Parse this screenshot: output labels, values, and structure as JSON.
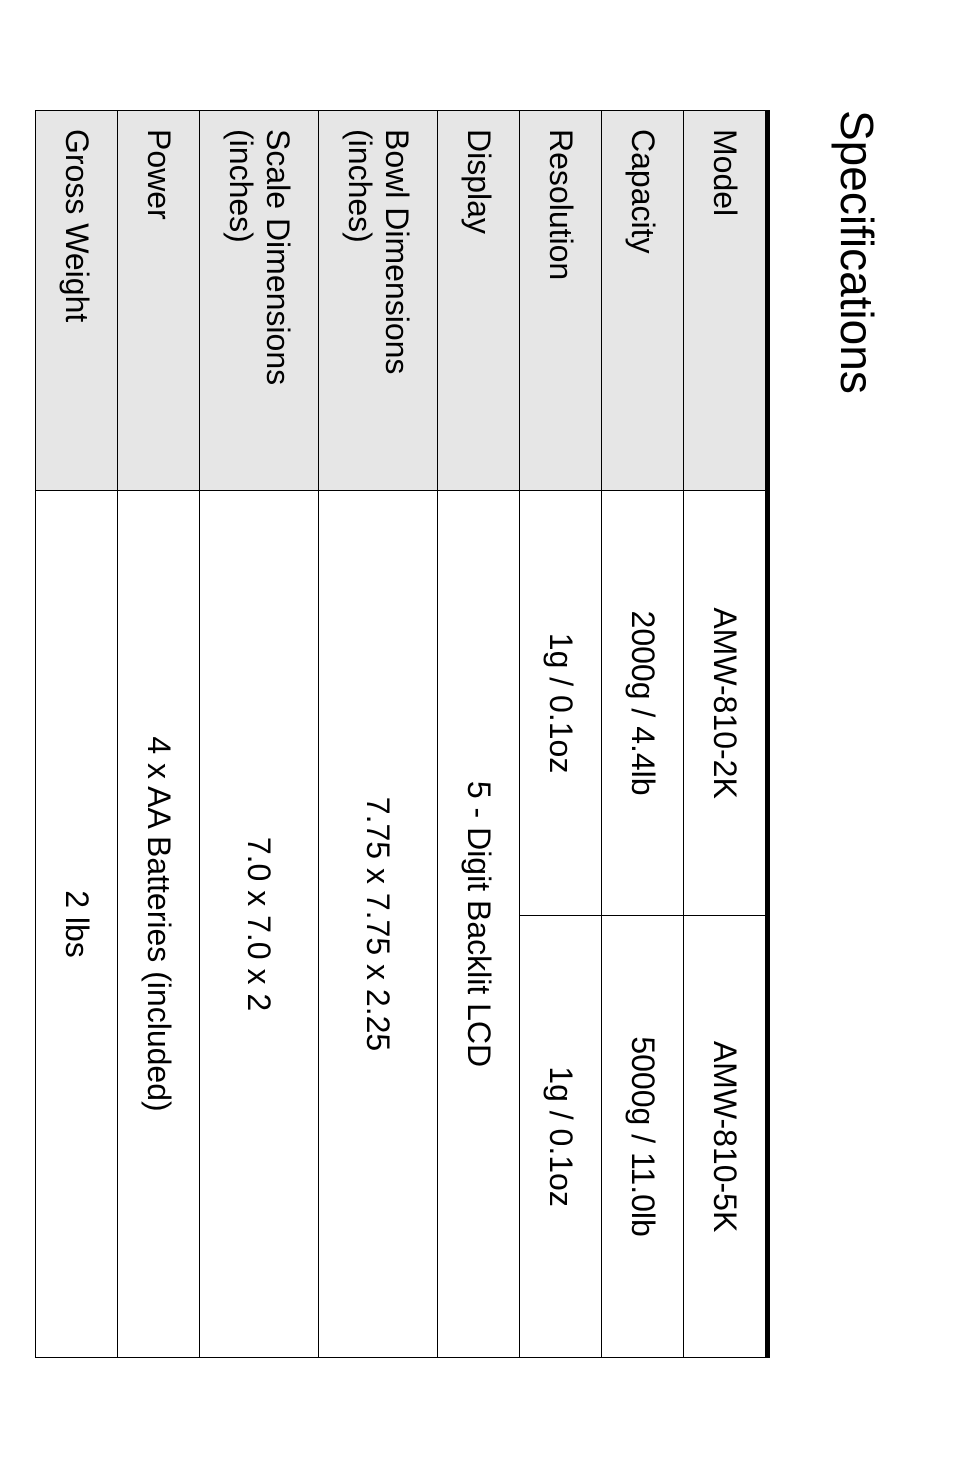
{
  "title": "Specifications",
  "table": {
    "header_bg": "#e6e6e6",
    "border_color": "#000000",
    "top_border_width": 5,
    "cell_border_width": 1.5,
    "font_size": 32,
    "rows": [
      {
        "label": "Model",
        "col1": "AMW-810-2K",
        "col2": "AMW-810-5K",
        "span": false
      },
      {
        "label": "Capacity",
        "col1": "2000g / 4.4lb",
        "col2": "5000g / 11.0lb",
        "span": false
      },
      {
        "label": "Resolution",
        "col1": "1g / 0.1oz",
        "col2": "1g / 0.1oz",
        "span": false
      },
      {
        "label": "Display",
        "col1": "5 - Digit Backlit LCD",
        "col2": "",
        "span": true
      },
      {
        "label": "Bowl Dimensions (inches)",
        "col1": "7.75 x 7.75 x 2.25",
        "col2": "",
        "span": true
      },
      {
        "label": "Scale Dimensions (inches)",
        "col1": "7.0 x 7.0 x 2",
        "col2": "",
        "span": true
      },
      {
        "label": "Power",
        "col1": "4 x AA Batteries (included)",
        "col2": "",
        "span": true
      },
      {
        "label": "Gross Weight",
        "col1": "2 lbs",
        "col2": "",
        "span": true
      }
    ]
  }
}
